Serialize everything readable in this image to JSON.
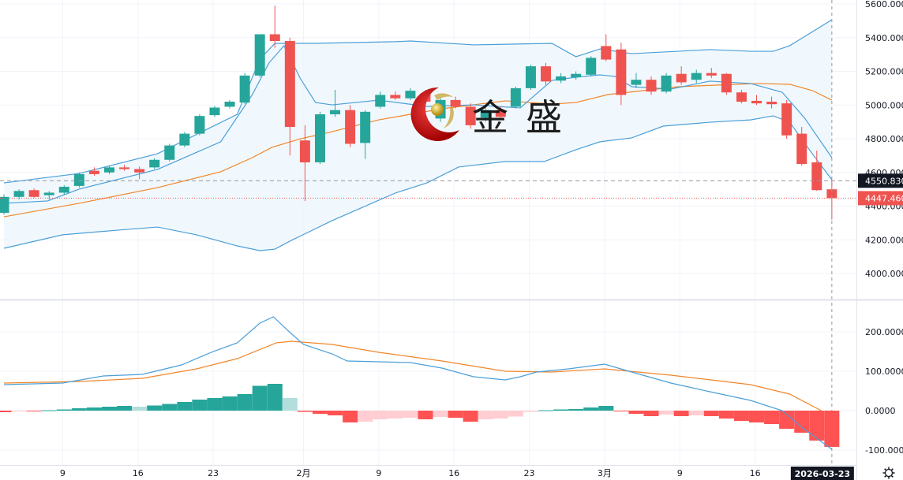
{
  "chart_data": [
    {
      "type": "candlestick",
      "title": "",
      "y_ticks": [
        "5600.0000",
        "5400.0000",
        "5200.0000",
        "5000.0000",
        "4800.0000",
        "4600.0000",
        "4400.0000",
        "4200.0000",
        "4000.0000"
      ],
      "ylim": [
        3850,
        5600
      ],
      "crosshair_label": "4550.8300",
      "last_price_label": "4447.4600",
      "crosshair_price": 4550.83,
      "last_price": 4447.46,
      "colors": {
        "up": "#26a69a",
        "down": "#ef5350",
        "band": "#4a9fd8",
        "ma": "#f0862a",
        "band_fill": "#eef6fd"
      },
      "ohlc": [
        [
          4360,
          4470,
          4350,
          4455
        ],
        [
          4455,
          4500,
          4440,
          4490
        ],
        [
          4495,
          4505,
          4450,
          4455
        ],
        [
          4465,
          4490,
          4440,
          4480
        ],
        [
          4480,
          4525,
          4470,
          4515
        ],
        [
          4520,
          4600,
          4510,
          4590
        ],
        [
          4610,
          4630,
          4580,
          4590
        ],
        [
          4600,
          4640,
          4590,
          4630
        ],
        [
          4630,
          4645,
          4610,
          4620
        ],
        [
          4620,
          4635,
          4560,
          4600
        ],
        [
          4630,
          4685,
          4620,
          4675
        ],
        [
          4675,
          4770,
          4665,
          4760
        ],
        [
          4760,
          4840,
          4750,
          4830
        ],
        [
          4830,
          4945,
          4820,
          4935
        ],
        [
          4940,
          4995,
          4930,
          4985
        ],
        [
          4990,
          5030,
          4980,
          5020
        ],
        [
          5015,
          5190,
          5005,
          5175
        ],
        [
          5175,
          5420,
          5165,
          5420
        ],
        [
          5420,
          5590,
          5340,
          5380
        ],
        [
          5380,
          5400,
          4700,
          4870
        ],
        [
          4790,
          4880,
          4430,
          4660
        ],
        [
          4660,
          4960,
          4650,
          4945
        ],
        [
          4945,
          5090,
          4930,
          4970
        ],
        [
          4970,
          5000,
          4750,
          4770
        ],
        [
          4775,
          4970,
          4680,
          4960
        ],
        [
          4990,
          5080,
          4980,
          5060
        ],
        [
          5060,
          5080,
          5030,
          5040
        ],
        [
          5040,
          5100,
          5030,
          5085
        ],
        [
          5070,
          5090,
          5010,
          5020
        ],
        [
          4920,
          5040,
          4900,
          5030
        ],
        [
          5030,
          5050,
          4980,
          4990
        ],
        [
          4990,
          5010,
          4860,
          4880
        ],
        [
          4925,
          4990,
          4900,
          4970
        ],
        [
          4970,
          4990,
          4910,
          4930
        ],
        [
          4990,
          5110,
          4980,
          5100
        ],
        [
          5100,
          5240,
          5090,
          5230
        ],
        [
          5230,
          5250,
          5120,
          5140
        ],
        [
          5145,
          5190,
          5130,
          5170
        ],
        [
          5165,
          5200,
          5150,
          5185
        ],
        [
          5180,
          5290,
          5170,
          5280
        ],
        [
          5350,
          5420,
          5260,
          5270
        ],
        [
          5330,
          5370,
          5000,
          5060
        ],
        [
          5120,
          5190,
          5100,
          5150
        ],
        [
          5150,
          5170,
          5060,
          5080
        ],
        [
          5080,
          5190,
          5070,
          5175
        ],
        [
          5185,
          5230,
          5120,
          5135
        ],
        [
          5150,
          5210,
          5130,
          5190
        ],
        [
          5190,
          5220,
          5160,
          5175
        ],
        [
          5185,
          5190,
          5060,
          5075
        ],
        [
          5075,
          5090,
          5010,
          5020
        ],
        [
          5025,
          5060,
          5000,
          5010
        ],
        [
          5020,
          5050,
          4980,
          5005
        ],
        [
          5010,
          5030,
          4800,
          4820
        ],
        [
          4830,
          4870,
          4640,
          4650
        ],
        [
          4660,
          4730,
          4490,
          4495
        ],
        [
          4500,
          4560,
          4320,
          4447.46
        ]
      ],
      "upper_band": [
        [
          0,
          4538
        ],
        [
          5,
          4594
        ],
        [
          10.2,
          4711
        ],
        [
          15.5,
          4945
        ],
        [
          17,
          5273
        ],
        [
          18,
          5366
        ],
        [
          20.7,
          5366
        ],
        [
          26,
          5376
        ],
        [
          27,
          5380
        ],
        [
          31.2,
          5357
        ],
        [
          36.4,
          5366
        ],
        [
          38,
          5287
        ],
        [
          39.6,
          5333
        ],
        [
          41.7,
          5305
        ],
        [
          46.9,
          5329
        ],
        [
          49.6,
          5319
        ],
        [
          51.1,
          5319
        ],
        [
          52.2,
          5352
        ],
        [
          55,
          5506
        ]
      ],
      "lower_band": [
        [
          0,
          4150
        ],
        [
          3.9,
          4230
        ],
        [
          7.6,
          4258
        ],
        [
          10.2,
          4276
        ],
        [
          12.8,
          4230
        ],
        [
          15.5,
          4164
        ],
        [
          17,
          4136
        ],
        [
          18,
          4145
        ],
        [
          19.1,
          4197
        ],
        [
          21.8,
          4314
        ],
        [
          26,
          4478
        ],
        [
          28.1,
          4538
        ],
        [
          30.2,
          4632
        ],
        [
          33.3,
          4665
        ],
        [
          35.9,
          4665
        ],
        [
          38,
          4735
        ],
        [
          39.6,
          4782
        ],
        [
          41.7,
          4805
        ],
        [
          43.8,
          4875
        ],
        [
          46.9,
          4898
        ],
        [
          49.6,
          4912
        ],
        [
          51.1,
          4936
        ],
        [
          52.2,
          4898
        ],
        [
          53.7,
          4711
        ],
        [
          55,
          4557
        ]
      ],
      "mid_line": [
        [
          0,
          4417
        ],
        [
          2.9,
          4431
        ],
        [
          5,
          4501
        ],
        [
          10.2,
          4618
        ],
        [
          14.4,
          4782
        ],
        [
          16.5,
          5062
        ],
        [
          17.6,
          5249
        ],
        [
          18.6,
          5352
        ],
        [
          19.7,
          5156
        ],
        [
          20.7,
          5015
        ],
        [
          21.8,
          5001
        ],
        [
          24.9,
          5029
        ],
        [
          28.1,
          4992
        ],
        [
          31.2,
          5001
        ],
        [
          34.3,
          4983
        ],
        [
          36.4,
          5146
        ],
        [
          38,
          5165
        ],
        [
          39.6,
          5179
        ],
        [
          40.6,
          5170
        ],
        [
          41.7,
          5109
        ],
        [
          44.3,
          5095
        ],
        [
          46.9,
          5142
        ],
        [
          49.6,
          5128
        ],
        [
          51.7,
          5076
        ],
        [
          53.2,
          4922
        ],
        [
          55,
          4688
        ]
      ],
      "ma_line": [
        [
          0,
          4337
        ],
        [
          5,
          4417
        ],
        [
          10.2,
          4510
        ],
        [
          14.4,
          4604
        ],
        [
          16.5,
          4688
        ],
        [
          17.8,
          4749
        ],
        [
          19.7,
          4800
        ],
        [
          21.8,
          4842
        ],
        [
          24.9,
          4912
        ],
        [
          29.1,
          4978
        ],
        [
          33.3,
          5025
        ],
        [
          36.4,
          5006
        ],
        [
          38,
          5015
        ],
        [
          40.1,
          5062
        ],
        [
          44.8,
          5109
        ],
        [
          50.1,
          5128
        ],
        [
          52.2,
          5123
        ],
        [
          53.7,
          5086
        ],
        [
          55,
          5029
        ]
      ]
    },
    {
      "type": "macd",
      "y_ticks": [
        "200.0000",
        "100.0000",
        "0.0000",
        "-100.0000"
      ],
      "ylim": [
        -110,
        280
      ],
      "histogram": [
        -4,
        -2,
        -2,
        1,
        3,
        6,
        8,
        10,
        12,
        10,
        13,
        17,
        22,
        28,
        32,
        36,
        42,
        63,
        68,
        32,
        -3,
        -8,
        -12,
        -30,
        -28,
        -22,
        -20,
        -18,
        -22,
        -16,
        -18,
        -28,
        -22,
        -20,
        -15,
        -3,
        1,
        3,
        4,
        8,
        12,
        -2,
        -8,
        -14,
        -10,
        -14,
        -12,
        -14,
        -20,
        -26,
        -30,
        -34,
        -46,
        -56,
        -76,
        -92
      ],
      "dif": [
        [
          0,
          66
        ],
        [
          3.9,
          70
        ],
        [
          6.6,
          88
        ],
        [
          9.2,
          92
        ],
        [
          11.8,
          116
        ],
        [
          13.9,
          150
        ],
        [
          15.5,
          172
        ],
        [
          17,
          222
        ],
        [
          17.9,
          238
        ],
        [
          18.9,
          202
        ],
        [
          19.9,
          168
        ],
        [
          21.8,
          144
        ],
        [
          22.8,
          126
        ],
        [
          24.9,
          124
        ],
        [
          27,
          122
        ],
        [
          29.1,
          108
        ],
        [
          31.2,
          86
        ],
        [
          33.3,
          78
        ],
        [
          34.3,
          86
        ],
        [
          35.4,
          98
        ],
        [
          37.5,
          106
        ],
        [
          39.9,
          118
        ],
        [
          41.7,
          98
        ],
        [
          44.3,
          70
        ],
        [
          46.9,
          48
        ],
        [
          49.6,
          26
        ],
        [
          51.7,
          0
        ],
        [
          53.2,
          -48
        ],
        [
          55,
          -98
        ]
      ],
      "dea": [
        [
          0,
          70
        ],
        [
          5,
          74
        ],
        [
          9.2,
          82
        ],
        [
          12.8,
          106
        ],
        [
          15.5,
          132
        ],
        [
          18.1,
          172
        ],
        [
          19.1,
          176
        ],
        [
          21.8,
          168
        ],
        [
          24.9,
          148
        ],
        [
          29.1,
          126
        ],
        [
          33.3,
          100
        ],
        [
          36.4,
          98
        ],
        [
          39.9,
          106
        ],
        [
          44.3,
          90
        ],
        [
          49.6,
          66
        ],
        [
          52.2,
          42
        ],
        [
          54.3,
          0
        ]
      ],
      "colors": {
        "up_strong": "#26a69a",
        "up_weak": "#b2dfdb",
        "down_strong": "#ff5252",
        "down_weak": "#ffcdd2",
        "dif": "#4a9fd8",
        "dea": "#f0862a"
      }
    }
  ],
  "time_axis": {
    "labels": [
      "9",
      "16",
      "23",
      "2月",
      "9",
      "16",
      "23",
      "3月",
      "9",
      "16"
    ],
    "label_index": [
      3.9,
      8.9,
      13.9,
      19.9,
      24.9,
      29.9,
      34.9,
      39.9,
      44.9,
      49.9
    ],
    "current": "2026-03-23"
  },
  "watermark": "金盛"
}
